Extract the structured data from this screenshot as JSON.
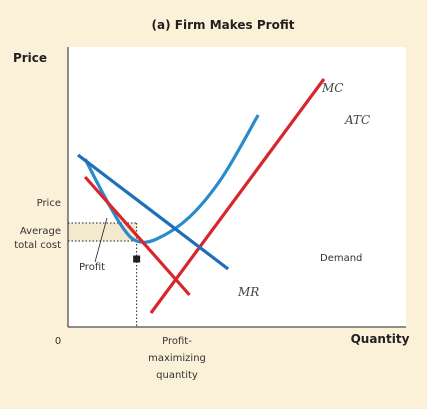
{
  "chart_data": {
    "type": "line",
    "title": "(a) Firm Makes Profit",
    "ylabel": "Price",
    "xlabel": "Quantity",
    "origin_label": "0",
    "colors": {
      "background": "#fbf1d9",
      "plot": "#ffffff",
      "MC": "#d7262c",
      "MR": "#d7262c",
      "ATC": "#2a8bcb",
      "Demand": "#1c6fb8",
      "profit_area": "#f2e9cf",
      "equilibrium_point": "#231f20"
    },
    "series": [
      {
        "name": "MC",
        "points": [
          [
            5.8,
            0.7
          ],
          [
            17.9,
            12.4
          ]
        ]
      },
      {
        "name": "ATC",
        "points": [
          [
            1.2,
            8.4
          ],
          [
            2.5,
            6.6
          ],
          [
            3.8,
            5.0
          ],
          [
            4.8,
            4.3
          ],
          [
            6.2,
            4.4
          ],
          [
            8.5,
            5.5
          ],
          [
            10.8,
            7.5
          ],
          [
            13.3,
            10.6
          ]
        ]
      },
      {
        "name": "Demand",
        "points": [
          [
            0.7,
            8.6
          ],
          [
            11.2,
            2.9
          ]
        ]
      },
      {
        "name": "MR",
        "points": [
          [
            1.2,
            7.5
          ],
          [
            8.5,
            1.6
          ]
        ]
      }
    ],
    "curve_labels": [
      "MC",
      "ATC",
      "Demand",
      "MR"
    ],
    "equilibrium": {
      "x": 4.8,
      "y": 3.4
    },
    "annotations": {
      "price_label": "Price",
      "price_level": 5.2,
      "average_total_cost_label": [
        "Average",
        "total cost"
      ],
      "average_total_cost_level": 4.3,
      "profit_label": "Profit",
      "quantity_label": [
        "Profit-",
        "maximizing",
        "quantity"
      ]
    }
  }
}
